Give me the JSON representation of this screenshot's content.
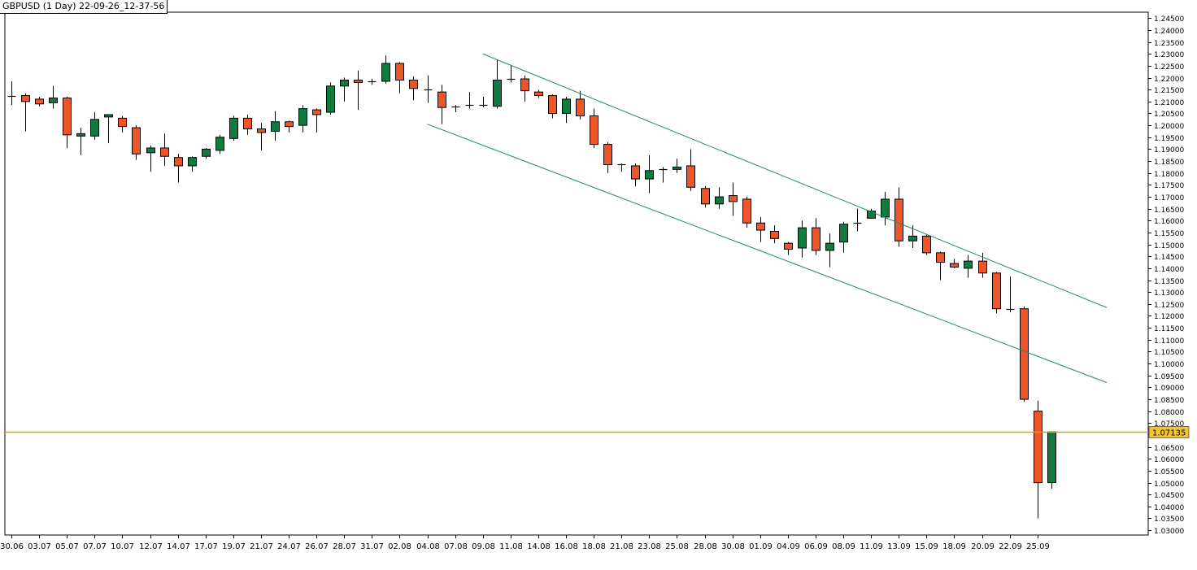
{
  "header": {
    "title": "GBPUSD (1 Day) 22-09-26_12-37-56"
  },
  "colors": {
    "bull": "#107A40",
    "bear": "#EE5528",
    "wick": "#000000",
    "channel": "#1E8F5A",
    "price_line": "#D4A017",
    "price_box": "#F4C430"
  },
  "chart_data": {
    "type": "candlestick",
    "title": "GBPUSD (1 Day) 22-09-26_12-37-56",
    "ylim": [
      1.028,
      1.2475
    ],
    "y_ticks": [
      "1.24500",
      "1.24000",
      "1.23500",
      "1.23000",
      "1.22500",
      "1.22000",
      "1.21500",
      "1.21000",
      "1.20500",
      "1.20000",
      "1.19500",
      "1.19000",
      "1.18500",
      "1.18000",
      "1.17500",
      "1.17000",
      "1.16500",
      "1.16000",
      "1.15500",
      "1.15000",
      "1.14500",
      "1.14000",
      "1.13500",
      "1.13000",
      "1.12500",
      "1.12000",
      "1.11500",
      "1.11000",
      "1.10500",
      "1.10000",
      "1.09500",
      "1.09000",
      "1.08500",
      "1.08000",
      "1.07500",
      "1.06500",
      "1.06000",
      "1.05500",
      "1.05000",
      "1.04500",
      "1.04000",
      "1.03500",
      "1.03000"
    ],
    "x_ticks": [
      {
        "index": 0,
        "label": "30.06"
      },
      {
        "index": 2,
        "label": "03.07"
      },
      {
        "index": 4,
        "label": "05.07"
      },
      {
        "index": 6,
        "label": "07.07"
      },
      {
        "index": 8,
        "label": "10.07"
      },
      {
        "index": 10,
        "label": "12.07"
      },
      {
        "index": 12,
        "label": "14.07"
      },
      {
        "index": 14,
        "label": "17.07"
      },
      {
        "index": 16,
        "label": "19.07"
      },
      {
        "index": 18,
        "label": "21.07"
      },
      {
        "index": 20,
        "label": "24.07"
      },
      {
        "index": 22,
        "label": "26.07"
      },
      {
        "index": 24,
        "label": "28.07"
      },
      {
        "index": 26,
        "label": "31.07"
      },
      {
        "index": 28,
        "label": "02.08"
      },
      {
        "index": 30,
        "label": "04.08"
      },
      {
        "index": 32,
        "label": "07.08"
      },
      {
        "index": 34,
        "label": "09.08"
      },
      {
        "index": 36,
        "label": "11.08"
      },
      {
        "index": 38,
        "label": "14.08"
      },
      {
        "index": 40,
        "label": "16.08"
      },
      {
        "index": 42,
        "label": "18.08"
      },
      {
        "index": 44,
        "label": "21.08"
      },
      {
        "index": 46,
        "label": "23.08"
      },
      {
        "index": 48,
        "label": "25.08"
      },
      {
        "index": 50,
        "label": "28.08"
      },
      {
        "index": 52,
        "label": "30.08"
      },
      {
        "index": 54,
        "label": "01.09"
      },
      {
        "index": 56,
        "label": "04.09"
      },
      {
        "index": 58,
        "label": "06.09"
      },
      {
        "index": 60,
        "label": "08.09"
      },
      {
        "index": 62,
        "label": "11.09"
      },
      {
        "index": 64,
        "label": "13.09"
      },
      {
        "index": 66,
        "label": "15.09"
      },
      {
        "index": 68,
        "label": "18.09"
      },
      {
        "index": 70,
        "label": "20.09"
      },
      {
        "index": 72,
        "label": "22.09"
      },
      {
        "index": 74,
        "label": "25.09"
      }
    ],
    "candles": [
      {
        "o": 1.2125,
        "h": 1.2185,
        "l": 1.2085,
        "c": 1.2125
      },
      {
        "o": 1.2125,
        "h": 1.2135,
        "l": 1.1975,
        "c": 1.21
      },
      {
        "o": 1.211,
        "h": 1.212,
        "l": 1.208,
        "c": 1.209
      },
      {
        "o": 1.2095,
        "h": 1.2165,
        "l": 1.207,
        "c": 1.2115
      },
      {
        "o": 1.2115,
        "h": 1.212,
        "l": 1.1905,
        "c": 1.196
      },
      {
        "o": 1.1955,
        "h": 1.199,
        "l": 1.1875,
        "c": 1.1965
      },
      {
        "o": 1.1955,
        "h": 1.2055,
        "l": 1.194,
        "c": 1.2025
      },
      {
        "o": 1.2035,
        "h": 1.2045,
        "l": 1.1925,
        "c": 1.2045
      },
      {
        "o": 1.203,
        "h": 1.204,
        "l": 1.197,
        "c": 1.1995
      },
      {
        "o": 1.199,
        "h": 1.2,
        "l": 1.1855,
        "c": 1.188
      },
      {
        "o": 1.1885,
        "h": 1.1915,
        "l": 1.1805,
        "c": 1.1905
      },
      {
        "o": 1.1905,
        "h": 1.1965,
        "l": 1.183,
        "c": 1.187
      },
      {
        "o": 1.1865,
        "h": 1.188,
        "l": 1.176,
        "c": 1.183
      },
      {
        "o": 1.183,
        "h": 1.187,
        "l": 1.1805,
        "c": 1.1865
      },
      {
        "o": 1.187,
        "h": 1.1905,
        "l": 1.186,
        "c": 1.19
      },
      {
        "o": 1.1895,
        "h": 1.196,
        "l": 1.188,
        "c": 1.195
      },
      {
        "o": 1.1945,
        "h": 1.204,
        "l": 1.1935,
        "c": 1.203
      },
      {
        "o": 1.203,
        "h": 1.2045,
        "l": 1.196,
        "c": 1.1985
      },
      {
        "o": 1.1985,
        "h": 1.201,
        "l": 1.1895,
        "c": 1.197
      },
      {
        "o": 1.1975,
        "h": 1.206,
        "l": 1.1935,
        "c": 1.2015
      },
      {
        "o": 1.2015,
        "h": 1.202,
        "l": 1.197,
        "c": 1.1995
      },
      {
        "o": 1.2,
        "h": 1.2085,
        "l": 1.197,
        "c": 1.207
      },
      {
        "o": 1.2065,
        "h": 1.207,
        "l": 1.197,
        "c": 1.2045
      },
      {
        "o": 1.2055,
        "h": 1.218,
        "l": 1.2045,
        "c": 1.2165
      },
      {
        "o": 1.2165,
        "h": 1.22,
        "l": 1.21,
        "c": 1.219
      },
      {
        "o": 1.219,
        "h": 1.223,
        "l": 1.2065,
        "c": 1.218
      },
      {
        "o": 1.218,
        "h": 1.2195,
        "l": 1.217,
        "c": 1.2185
      },
      {
        "o": 1.2185,
        "h": 1.2293,
        "l": 1.2175,
        "c": 1.226
      },
      {
        "o": 1.226,
        "h": 1.2265,
        "l": 1.2135,
        "c": 1.219
      },
      {
        "o": 1.219,
        "h": 1.2205,
        "l": 1.2105,
        "c": 1.2155
      },
      {
        "o": 1.215,
        "h": 1.221,
        "l": 1.2095,
        "c": 1.215
      },
      {
        "o": 1.214,
        "h": 1.217,
        "l": 1.2005,
        "c": 1.2075
      },
      {
        "o": 1.2075,
        "h": 1.2085,
        "l": 1.2055,
        "c": 1.208
      },
      {
        "o": 1.208,
        "h": 1.214,
        "l": 1.207,
        "c": 1.2085
      },
      {
        "o": 1.2085,
        "h": 1.212,
        "l": 1.2075,
        "c": 1.208
      },
      {
        "o": 1.208,
        "h": 1.2275,
        "l": 1.207,
        "c": 1.219
      },
      {
        "o": 1.2195,
        "h": 1.225,
        "l": 1.218,
        "c": 1.2195
      },
      {
        "o": 1.2195,
        "h": 1.221,
        "l": 1.21,
        "c": 1.2145
      },
      {
        "o": 1.214,
        "h": 1.215,
        "l": 1.2115,
        "c": 1.2125
      },
      {
        "o": 1.2125,
        "h": 1.213,
        "l": 1.203,
        "c": 1.205
      },
      {
        "o": 1.205,
        "h": 1.212,
        "l": 1.201,
        "c": 1.211
      },
      {
        "o": 1.211,
        "h": 1.2145,
        "l": 1.2025,
        "c": 1.204
      },
      {
        "o": 1.204,
        "h": 1.207,
        "l": 1.1905,
        "c": 1.192
      },
      {
        "o": 1.192,
        "h": 1.193,
        "l": 1.18,
        "c": 1.1835
      },
      {
        "o": 1.1835,
        "h": 1.184,
        "l": 1.1805,
        "c": 1.183
      },
      {
        "o": 1.183,
        "h": 1.184,
        "l": 1.1745,
        "c": 1.1775
      },
      {
        "o": 1.1775,
        "h": 1.1875,
        "l": 1.1715,
        "c": 1.181
      },
      {
        "o": 1.181,
        "h": 1.1825,
        "l": 1.176,
        "c": 1.1815
      },
      {
        "o": 1.1815,
        "h": 1.186,
        "l": 1.18,
        "c": 1.1825
      },
      {
        "o": 1.183,
        "h": 1.19,
        "l": 1.1725,
        "c": 1.174
      },
      {
        "o": 1.1735,
        "h": 1.1745,
        "l": 1.1655,
        "c": 1.167
      },
      {
        "o": 1.167,
        "h": 1.174,
        "l": 1.165,
        "c": 1.17
      },
      {
        "o": 1.1705,
        "h": 1.176,
        "l": 1.162,
        "c": 1.168
      },
      {
        "o": 1.169,
        "h": 1.17,
        "l": 1.157,
        "c": 1.159
      },
      {
        "o": 1.159,
        "h": 1.1615,
        "l": 1.151,
        "c": 1.156
      },
      {
        "o": 1.1555,
        "h": 1.158,
        "l": 1.1505,
        "c": 1.1525
      },
      {
        "o": 1.1505,
        "h": 1.151,
        "l": 1.1455,
        "c": 1.148
      },
      {
        "o": 1.1485,
        "h": 1.16,
        "l": 1.1445,
        "c": 1.157
      },
      {
        "o": 1.157,
        "h": 1.161,
        "l": 1.1455,
        "c": 1.1475
      },
      {
        "o": 1.1475,
        "h": 1.1545,
        "l": 1.1405,
        "c": 1.1505
      },
      {
        "o": 1.151,
        "h": 1.1595,
        "l": 1.1465,
        "c": 1.1585
      },
      {
        "o": 1.1585,
        "h": 1.165,
        "l": 1.1555,
        "c": 1.159
      },
      {
        "o": 1.161,
        "h": 1.165,
        "l": 1.161,
        "c": 1.164
      },
      {
        "o": 1.1615,
        "h": 1.172,
        "l": 1.158,
        "c": 1.169
      },
      {
        "o": 1.169,
        "h": 1.174,
        "l": 1.149,
        "c": 1.1515
      },
      {
        "o": 1.1515,
        "h": 1.158,
        "l": 1.1485,
        "c": 1.1535
      },
      {
        "o": 1.1535,
        "h": 1.154,
        "l": 1.1455,
        "c": 1.1465
      },
      {
        "o": 1.1465,
        "h": 1.147,
        "l": 1.135,
        "c": 1.1425
      },
      {
        "o": 1.142,
        "h": 1.144,
        "l": 1.14,
        "c": 1.1405
      },
      {
        "o": 1.14,
        "h": 1.1455,
        "l": 1.136,
        "c": 1.143
      },
      {
        "o": 1.143,
        "h": 1.1465,
        "l": 1.136,
        "c": 1.138
      },
      {
        "o": 1.138,
        "h": 1.1385,
        "l": 1.121,
        "c": 1.123
      },
      {
        "o": 1.123,
        "h": 1.1365,
        "l": 1.1215,
        "c": 1.123
      },
      {
        "o": 1.123,
        "h": 1.124,
        "l": 1.084,
        "c": 1.085
      },
      {
        "o": 1.08,
        "h": 1.0845,
        "l": 1.035,
        "c": 1.05
      },
      {
        "o": 1.05,
        "h": 1.0715,
        "l": 1.0475,
        "c": 1.0713
      }
    ],
    "channel_lines": [
      {
        "name": "upper",
        "p1": {
          "index": 34,
          "price": 1.23
        },
        "p2": {
          "index": 79,
          "price": 1.1235
        }
      },
      {
        "name": "lower",
        "p1": {
          "index": 30,
          "price": 1.2005
        },
        "p2": {
          "index": 79,
          "price": 1.092
        }
      }
    ],
    "price_line": {
      "value": 1.07135,
      "label": "1.07135"
    }
  }
}
